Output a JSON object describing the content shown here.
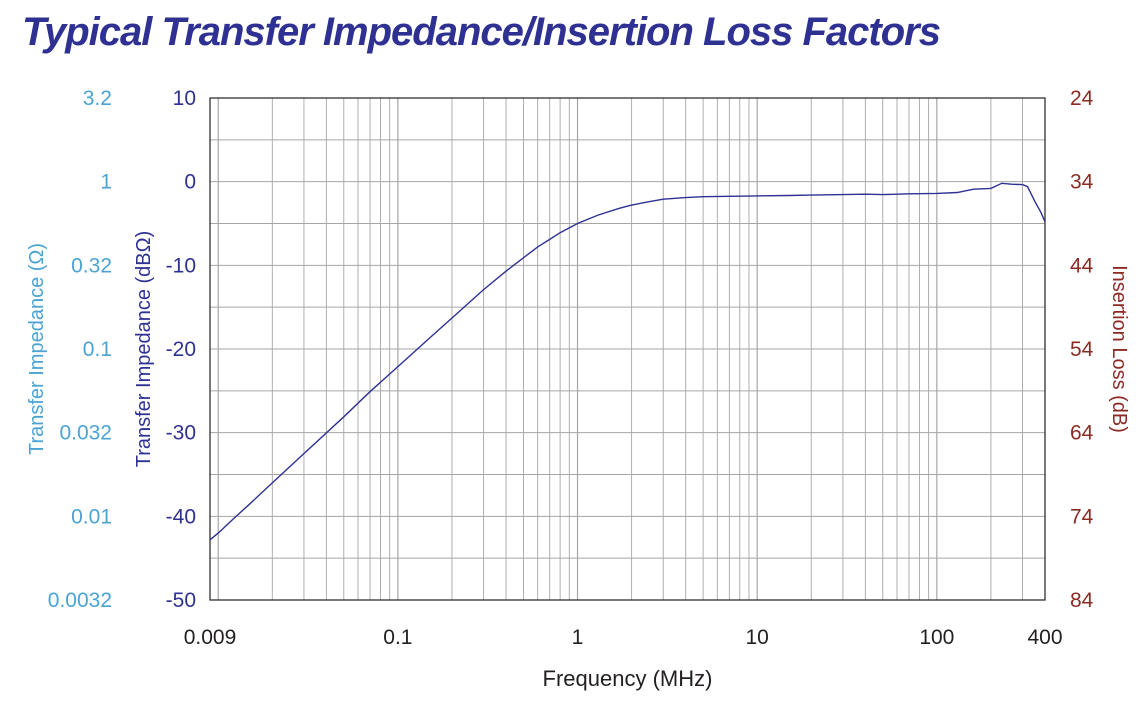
{
  "chart_data": {
    "type": "line",
    "title": "Typical Transfer Impedance/Insertion Loss Factors",
    "xlabel": "Frequency (MHz)",
    "ylabel": "Transfer Impedance (dBΩ)",
    "ylabel_secondary_left": "Transfer Impedance (Ω)",
    "ylabel_right": "Insertion Loss (dB)",
    "x_scale": "log",
    "xlim": [
      0.009,
      400
    ],
    "ylim": [
      -50,
      10
    ],
    "x_ticks": [
      {
        "value": 0.009,
        "label": "0.009"
      },
      {
        "value": 0.1,
        "label": "0.1"
      },
      {
        "value": 1,
        "label": "1"
      },
      {
        "value": 10,
        "label": "10"
      },
      {
        "value": 100,
        "label": "100"
      },
      {
        "value": 400,
        "label": "400"
      }
    ],
    "y_ticks": [
      "10",
      "0",
      "-10",
      "-20",
      "-30",
      "-40",
      "-50"
    ],
    "y_ticks_ohm": [
      "3.2",
      "1",
      "0.32",
      "0.1",
      "0.032",
      "0.01",
      "0.0032"
    ],
    "y_ticks_right": [
      "24",
      "34",
      "44",
      "54",
      "64",
      "74",
      "84"
    ],
    "grid": true,
    "colors": {
      "line": "#2e3192",
      "left_axis": "#2e3192",
      "far_left_axis": "#4ba3d3",
      "right_axis": "#8b2b24",
      "grid": "#a6a6a6"
    },
    "series": [
      {
        "x": [
          0.009,
          0.01,
          0.012,
          0.015,
          0.02,
          0.03,
          0.05,
          0.07,
          0.1,
          0.15,
          0.2,
          0.3,
          0.4,
          0.5,
          0.6,
          0.7,
          0.8,
          1.0,
          1.3,
          1.7,
          2.0,
          2.5,
          3.0,
          4.0,
          5.0,
          7.0,
          10,
          15,
          20,
          30,
          40,
          50,
          70,
          100,
          130,
          160,
          200,
          230,
          260,
          300,
          320,
          350,
          380,
          400
        ],
        "y": [
          -42.8,
          -42.0,
          -40.4,
          -38.5,
          -36.0,
          -32.5,
          -28.1,
          -25.1,
          -22.1,
          -18.7,
          -16.3,
          -12.9,
          -10.7,
          -9.1,
          -7.8,
          -6.9,
          -6.1,
          -5.0,
          -4.0,
          -3.2,
          -2.8,
          -2.4,
          -2.1,
          -1.9,
          -1.8,
          -1.75,
          -1.7,
          -1.65,
          -1.6,
          -1.55,
          -1.5,
          -1.55,
          -1.45,
          -1.4,
          -1.3,
          -0.9,
          -0.8,
          -0.2,
          -0.3,
          -0.35,
          -0.6,
          -2.3,
          -3.7,
          -4.8
        ]
      }
    ]
  }
}
